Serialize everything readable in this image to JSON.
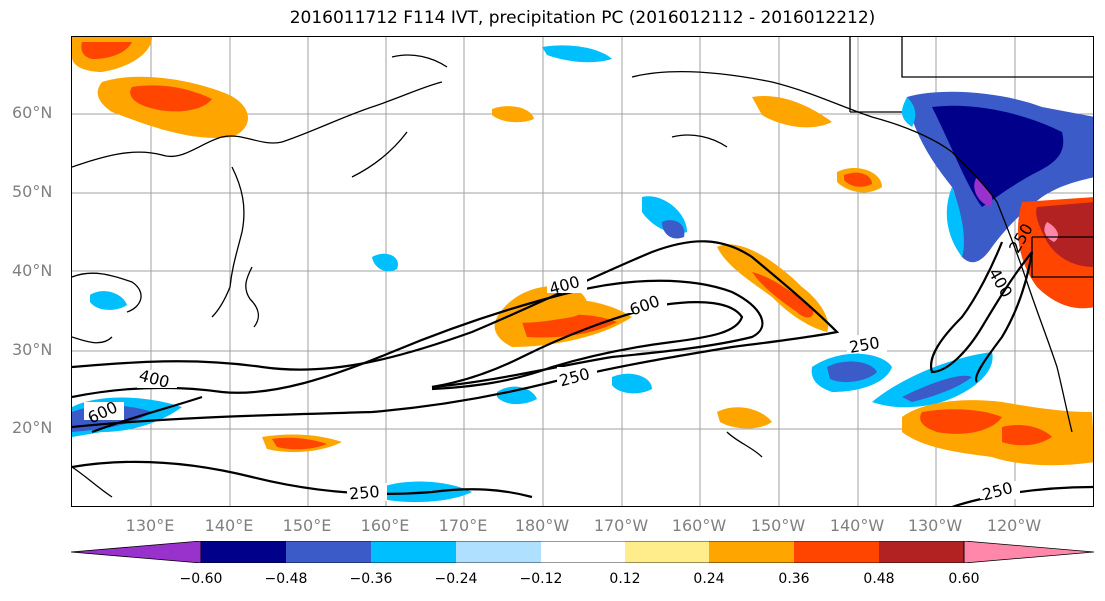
{
  "title": "2016011712 F114 IVT, precipitation PC (2016012112 - 2016012212)",
  "lat_labels": [
    "60°N",
    "50°N",
    "40°N",
    "30°N",
    "20°N"
  ],
  "lon_labels": [
    "130°E",
    "140°E",
    "150°E",
    "160°E",
    "170°E",
    "180°W",
    "170°W",
    "160°W",
    "150°W",
    "140°W",
    "130°W",
    "120°W"
  ],
  "contour_labels": [
    "400",
    "600",
    "400",
    "600",
    "250",
    "250",
    "250",
    "250",
    "250",
    "400"
  ],
  "colorbar": {
    "ticks": [
      "−0.60",
      "−0.48",
      "−0.36",
      "−0.24",
      "−0.12",
      "0.12",
      "0.24",
      "0.36",
      "0.48",
      "0.60"
    ],
    "colors": [
      "#9932cc",
      "#00008b",
      "#3a5bc8",
      "#00bfff",
      "#b0e0ff",
      "#ffffff",
      "#ffec8b",
      "#ffa500",
      "#ff4500",
      "#b22222",
      "#ff88aa"
    ]
  }
}
